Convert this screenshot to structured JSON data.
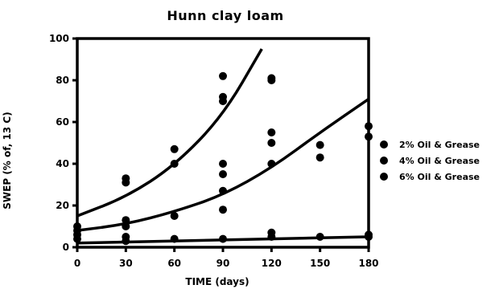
{
  "chart_data": {
    "type": "scatter",
    "title": "Hunn clay loam",
    "xlabel": "TIME (days)",
    "ylabel": "SWEP (% of, 13 C)",
    "xlim": [
      0,
      180
    ],
    "ylim": [
      0,
      100
    ],
    "xticks": [
      "0",
      "30",
      "60",
      "90",
      "120",
      "150",
      "180"
    ],
    "yticks": [
      "0",
      "20",
      "40",
      "60",
      "80",
      "100"
    ],
    "series": [
      {
        "name": "2% Oil & Grease",
        "points": [
          [
            0,
            10
          ],
          [
            30,
            31
          ],
          [
            30,
            33
          ],
          [
            60,
            40
          ],
          [
            60,
            47
          ],
          [
            90,
            70
          ],
          [
            90,
            72
          ],
          [
            90,
            82
          ],
          [
            120,
            80
          ],
          [
            120,
            81
          ]
        ],
        "fit": [
          [
            0,
            15
          ],
          [
            30,
            24
          ],
          [
            60,
            39
          ],
          [
            90,
            63
          ],
          [
            114,
            95
          ]
        ]
      },
      {
        "name": "4% Oil & Grease",
        "points": [
          [
            0,
            8
          ],
          [
            30,
            13
          ],
          [
            30,
            10
          ],
          [
            60,
            15
          ],
          [
            90,
            18
          ],
          [
            90,
            27
          ],
          [
            90,
            35
          ],
          [
            90,
            40
          ],
          [
            120,
            40
          ],
          [
            120,
            50
          ],
          [
            120,
            55
          ],
          [
            150,
            43
          ],
          [
            150,
            49
          ],
          [
            180,
            53
          ],
          [
            180,
            58
          ]
        ],
        "fit": [
          [
            0,
            8
          ],
          [
            30,
            11
          ],
          [
            60,
            17
          ],
          [
            90,
            25
          ],
          [
            120,
            38
          ],
          [
            150,
            55
          ],
          [
            180,
            71
          ]
        ]
      },
      {
        "name": "6% Oil & Grease",
        "points": [
          [
            0,
            4
          ],
          [
            0,
            6
          ],
          [
            30,
            3
          ],
          [
            30,
            5
          ],
          [
            60,
            4
          ],
          [
            90,
            4
          ],
          [
            120,
            5
          ],
          [
            120,
            7
          ],
          [
            150,
            5
          ],
          [
            180,
            5
          ],
          [
            180,
            6
          ]
        ],
        "fit": [
          [
            0,
            2
          ],
          [
            60,
            3
          ],
          [
            120,
            4
          ],
          [
            180,
            5
          ]
        ]
      }
    ],
    "legend_position": "right",
    "grid": false
  }
}
